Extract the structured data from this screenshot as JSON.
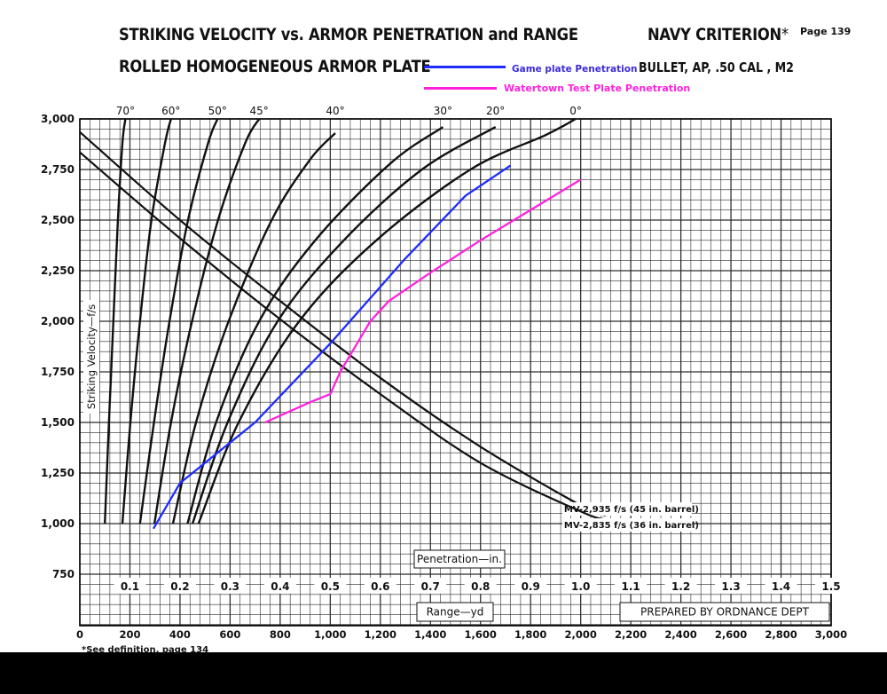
{
  "header": {
    "title_line1": "STRIKING VELOCITY vs. ARMOR PENETRATION and RANGE",
    "title_line2": "ROLLED HOMOGENEOUS ARMOR PLATE",
    "criterion": "NAVY CRITERION",
    "criterion_mark": "*",
    "page": "Page 139",
    "bullet": "BULLET, AP, .50 CAL , M2"
  },
  "legend": {
    "items": [
      {
        "label": "Game plate  Penetration",
        "color": "#1f2bff"
      },
      {
        "label": "Watertown Test Plate Penetration",
        "color": "#ff22dd"
      }
    ]
  },
  "footnote": "*See definition, page 134",
  "colors": {
    "grid": "#2a2a2a",
    "curve": "#111111",
    "blue": "#1f2bff",
    "magenta": "#ff22dd"
  },
  "chart_data": {
    "type": "line",
    "ylabel": "Striking Velocity—f/s",
    "xlabel_range": "Range—yd",
    "xlabel_penetration": "Penetration—in.",
    "prepared_by": "PREPARED BY ORDNANCE DEPT",
    "y_ticks": [
      "3,000",
      "2,750",
      "2,500",
      "2,250",
      "2,000",
      "1,750",
      "1,500",
      "1,250",
      "1,000",
      "750"
    ],
    "y_tick_values": [
      3000,
      2750,
      2500,
      2250,
      2000,
      1750,
      1500,
      1250,
      1000,
      750
    ],
    "ylim": [
      750,
      3000
    ],
    "range_ticks": [
      "0",
      "200",
      "400",
      "600",
      "800",
      "1,000",
      "1,200",
      "1,400",
      "1,600",
      "1,800",
      "2,000",
      "2,200",
      "2,400",
      "2,600",
      "2,800",
      "3,000"
    ],
    "range_tick_values": [
      0,
      200,
      400,
      600,
      800,
      1000,
      1200,
      1400,
      1600,
      1800,
      2000,
      2200,
      2400,
      2600,
      2800,
      3000
    ],
    "range_lim": [
      0,
      3000
    ],
    "penetration_ticks": [
      "0.1",
      "0.2",
      "0.3",
      "0.4",
      "0.5",
      "0.6",
      "0.7",
      "0.8",
      "0.9",
      "1.0",
      "1.1",
      "1.2",
      "1.3",
      "1.4",
      "1.5"
    ],
    "penetration_tick_values": [
      0.1,
      0.2,
      0.3,
      0.4,
      0.5,
      0.6,
      0.7,
      0.8,
      0.9,
      1.0,
      1.1,
      1.2,
      1.3,
      1.4,
      1.5
    ],
    "penetration_lim": [
      0,
      1.5
    ],
    "angle_curves": [
      {
        "label": "70°",
        "points": [
          [
            0.05,
            1000
          ],
          [
            0.058,
            1500
          ],
          [
            0.067,
            2000
          ],
          [
            0.076,
            2500
          ],
          [
            0.085,
            2880
          ],
          [
            0.091,
            3000
          ]
        ]
      },
      {
        "label": "60°",
        "points": [
          [
            0.085,
            1000
          ],
          [
            0.101,
            1500
          ],
          [
            0.12,
            2000
          ],
          [
            0.143,
            2500
          ],
          [
            0.17,
            2880
          ],
          [
            0.182,
            3000
          ]
        ]
      },
      {
        "label": "50°",
        "points": [
          [
            0.12,
            1000
          ],
          [
            0.148,
            1500
          ],
          [
            0.179,
            2000
          ],
          [
            0.216,
            2500
          ],
          [
            0.256,
            2880
          ],
          [
            0.275,
            3000
          ]
        ]
      },
      {
        "label": "45°",
        "points": [
          [
            0.149,
            1000
          ],
          [
            0.182,
            1500
          ],
          [
            0.224,
            2000
          ],
          [
            0.276,
            2500
          ],
          [
            0.33,
            2880
          ],
          [
            0.358,
            3000
          ]
        ]
      },
      {
        "label": "40°",
        "points": [
          [
            0.186,
            1000
          ],
          [
            0.232,
            1500
          ],
          [
            0.297,
            2000
          ],
          [
            0.383,
            2500
          ],
          [
            0.46,
            2800
          ],
          [
            0.51,
            2930
          ]
        ]
      },
      {
        "label": "30°",
        "points": [
          [
            0.215,
            1000
          ],
          [
            0.272,
            1500
          ],
          [
            0.358,
            2000
          ],
          [
            0.47,
            2400
          ],
          [
            0.62,
            2780
          ],
          [
            0.725,
            2960
          ]
        ]
      },
      {
        "label": "20°",
        "points": [
          [
            0.225,
            1000
          ],
          [
            0.295,
            1500
          ],
          [
            0.395,
            2000
          ],
          [
            0.527,
            2400
          ],
          [
            0.683,
            2750
          ],
          [
            0.83,
            2960
          ]
        ]
      },
      {
        "label": "0°",
        "points": [
          [
            0.237,
            1000
          ],
          [
            0.317,
            1500
          ],
          [
            0.438,
            2000
          ],
          [
            0.592,
            2400
          ],
          [
            0.78,
            2750
          ],
          [
            0.93,
            2920
          ],
          [
            0.99,
            3000
          ]
        ]
      }
    ],
    "range_curves": [
      {
        "label": "MV-2,935 f/s (45 in. barrel)",
        "points": [
          [
            0,
            2935
          ],
          [
            400,
            2500
          ],
          [
            800,
            2100
          ],
          [
            1200,
            1720
          ],
          [
            1600,
            1380
          ],
          [
            2000,
            1090
          ],
          [
            2100,
            1040
          ]
        ]
      },
      {
        "label": "MV-2,835 f/s (36 in. barrel)",
        "points": [
          [
            0,
            2835
          ],
          [
            400,
            2410
          ],
          [
            800,
            2010
          ],
          [
            1200,
            1640
          ],
          [
            1600,
            1300
          ],
          [
            2000,
            1060
          ],
          [
            2100,
            1020
          ]
        ]
      }
    ],
    "series": [
      {
        "name": "Game plate  Penetration",
        "points": [
          [
            0.147,
            975
          ],
          [
            0.2,
            1200
          ],
          [
            0.35,
            1500
          ],
          [
            0.5,
            1890
          ],
          [
            0.65,
            2310
          ],
          [
            0.77,
            2620
          ],
          [
            0.86,
            2770
          ]
        ]
      },
      {
        "name": "Watertown Test Plate Penetration",
        "points": [
          [
            0.37,
            1500
          ],
          [
            0.46,
            1600
          ],
          [
            0.5,
            1640
          ],
          [
            0.52,
            1750
          ],
          [
            0.58,
            2000
          ],
          [
            0.617,
            2100
          ],
          [
            0.7,
            2240
          ],
          [
            0.8,
            2400
          ],
          [
            0.9,
            2550
          ],
          [
            1.0,
            2700
          ]
        ]
      }
    ],
    "grid": true,
    "legend_position": "top-right"
  }
}
